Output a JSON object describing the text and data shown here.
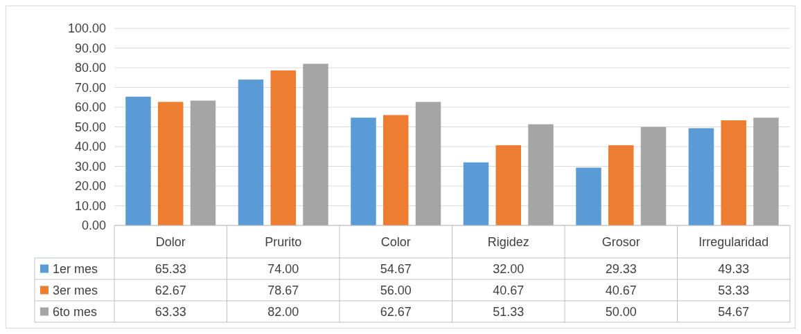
{
  "chart_data": {
    "type": "bar",
    "categories": [
      "Dolor",
      "Prurito",
      "Color",
      "Rigidez",
      "Grosor",
      "Irregularidad"
    ],
    "series": [
      {
        "name": "1er mes",
        "color": "#5b9bd5",
        "values": [
          65.33,
          74.0,
          54.67,
          32.0,
          29.33,
          49.33
        ],
        "value_labels": [
          "65.33",
          "74.00",
          "54.67",
          "32.00",
          "29.33",
          "49.33"
        ]
      },
      {
        "name": "3er mes",
        "color": "#ed7d31",
        "values": [
          62.67,
          78.67,
          56.0,
          40.67,
          40.67,
          53.33
        ],
        "value_labels": [
          "62.67",
          "78.67",
          "56.00",
          "40.67",
          "40.67",
          "53.33"
        ]
      },
      {
        "name": "6to mes",
        "color": "#a5a5a5",
        "values": [
          63.33,
          82.0,
          62.67,
          51.33,
          50.0,
          54.67
        ],
        "value_labels": [
          "63.33",
          "82.00",
          "62.67",
          "51.33",
          "50.00",
          "54.67"
        ]
      }
    ],
    "ylim": [
      0,
      100
    ],
    "yticks": [
      {
        "value": 0,
        "label": "0.00"
      },
      {
        "value": 10,
        "label": "10.00"
      },
      {
        "value": 20,
        "label": "20.00"
      },
      {
        "value": 30,
        "label": "30.00"
      },
      {
        "value": 40,
        "label": "40.00"
      },
      {
        "value": 50,
        "label": "50.00"
      },
      {
        "value": 60,
        "label": "60.00"
      },
      {
        "value": 70,
        "label": "70.00"
      },
      {
        "value": 80,
        "label": "80.00"
      },
      {
        "value": 90,
        "label": "90.00"
      },
      {
        "value": 100,
        "label": "100.00"
      }
    ],
    "grid": "y",
    "legend": "bottom"
  }
}
